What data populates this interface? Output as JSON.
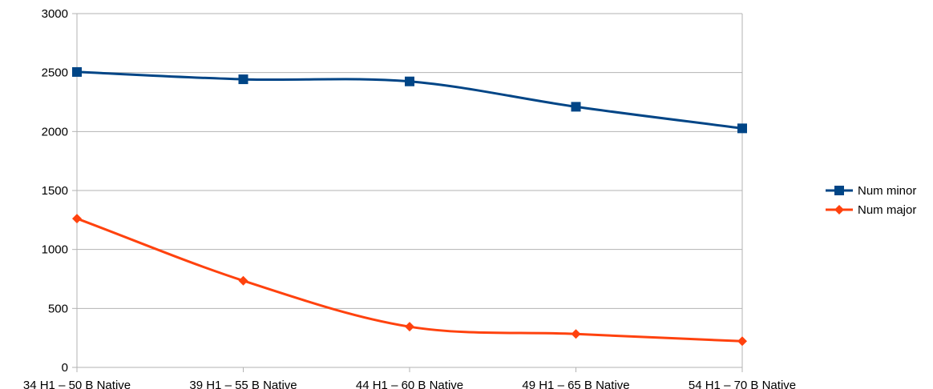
{
  "chart_data": {
    "type": "line",
    "smooth": true,
    "categories": [
      "34 H1 – 50 B Native",
      "39 H1 – 55 B Native",
      "44 H1 – 60 B Native",
      "49 H1 – 65 B Native",
      "54 H1 – 70 B Native"
    ],
    "y_ticks": [
      "0",
      "500",
      "1000",
      "1500",
      "2000",
      "2500",
      "3000"
    ],
    "ylim": [
      0,
      3000
    ],
    "grid": true,
    "legend_position": "right",
    "series": [
      {
        "name": "Num minor",
        "values": [
          2505,
          2443,
          2425,
          2210,
          2027
        ],
        "color": "#004586",
        "marker": "square"
      },
      {
        "name": "Num major",
        "values": [
          1262,
          735,
          345,
          283,
          222
        ],
        "color": "#ff420e",
        "marker": "diamond"
      }
    ]
  }
}
